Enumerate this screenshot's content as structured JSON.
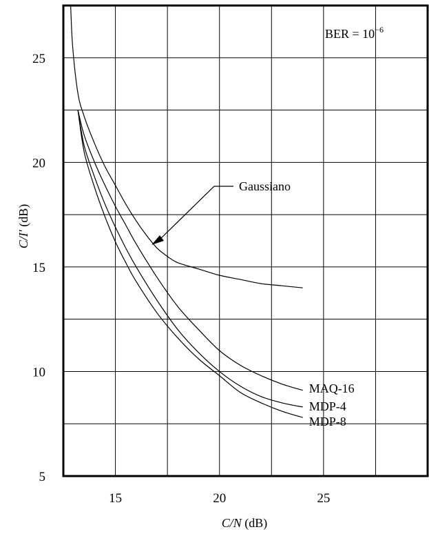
{
  "chart_data": {
    "type": "line",
    "title": "",
    "xlabel": "C/N (dB)",
    "xlabel_italic": "C/N",
    "xlabel_unit": " (dB)",
    "ylabel": "C/I′ (dB)",
    "ylabel_italic": "C/I′",
    "ylabel_unit": " (dB)",
    "xlim": [
      12.5,
      30
    ],
    "ylim": [
      5,
      27.5
    ],
    "xticks": [
      15,
      20,
      25
    ],
    "yticks": [
      5,
      10,
      15,
      20,
      25
    ],
    "grid": true,
    "annotation": {
      "text_main": "BER = 10",
      "text_sup": "−6"
    },
    "series": [
      {
        "name": "Gaussiano",
        "x": [
          12.85,
          12.95,
          13.2,
          13.5,
          14.0,
          14.5,
          15.0,
          15.5,
          16.0,
          16.5,
          17.0,
          17.5,
          18.0,
          19.0,
          20.0,
          21.0,
          22.0,
          23.0,
          24.0
        ],
        "y": [
          27.5,
          25.5,
          23.3,
          22.2,
          20.9,
          19.8,
          18.9,
          18.0,
          17.2,
          16.5,
          15.9,
          15.5,
          15.2,
          14.9,
          14.6,
          14.4,
          14.2,
          14.1,
          14.0
        ]
      },
      {
        "name": "MAQ-16",
        "x": [
          13.2,
          13.5,
          14.0,
          14.5,
          15.0,
          15.5,
          16.0,
          17.0,
          18.0,
          19.0,
          20.0,
          21.0,
          22.0,
          23.0,
          24.0
        ],
        "y": [
          22.5,
          21.3,
          20.0,
          18.9,
          17.9,
          17.0,
          16.1,
          14.5,
          13.1,
          12.0,
          11.0,
          10.3,
          9.8,
          9.4,
          9.1
        ]
      },
      {
        "name": "MDP-4",
        "x": [
          13.2,
          13.5,
          14.0,
          14.5,
          15.0,
          15.5,
          16.0,
          17.0,
          18.0,
          19.0,
          20.0,
          21.0,
          22.0,
          23.0,
          24.0
        ],
        "y": [
          22.5,
          20.8,
          19.3,
          18.0,
          16.9,
          15.9,
          15.0,
          13.4,
          12.0,
          10.9,
          10.0,
          9.3,
          8.8,
          8.5,
          8.3
        ]
      },
      {
        "name": "MDP-8",
        "x": [
          13.2,
          13.5,
          14.0,
          14.5,
          15.0,
          15.5,
          16.0,
          17.0,
          18.0,
          19.0,
          20.0,
          21.0,
          22.0,
          23.0,
          24.0
        ],
        "y": [
          22.5,
          20.5,
          18.8,
          17.4,
          16.2,
          15.2,
          14.3,
          12.8,
          11.6,
          10.6,
          9.8,
          9.0,
          8.5,
          8.1,
          7.8
        ]
      }
    ],
    "series_labels": [
      "Gaussiano",
      "MAQ-16",
      "MDP-4",
      "MDP-8"
    ]
  }
}
